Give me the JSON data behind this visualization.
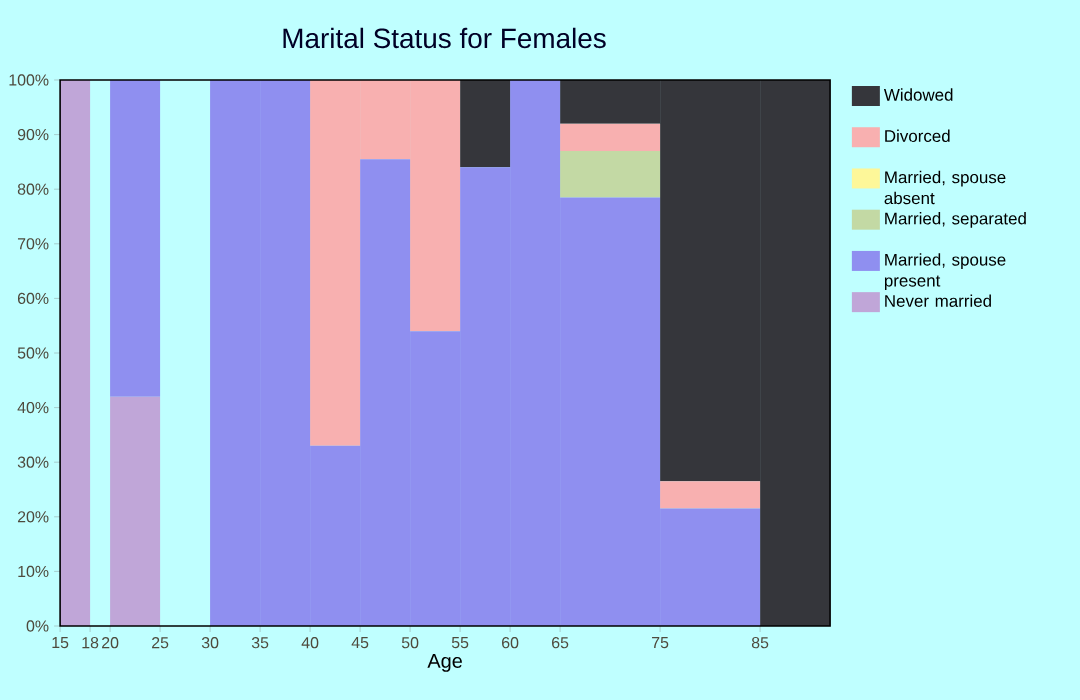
{
  "chart_data": {
    "type": "bar",
    "title": "Marital Status for Females",
    "xlabel": "Age",
    "stacked": true,
    "legend": "right",
    "x": [
      16.5,
      19,
      22.5,
      27.5,
      32.5,
      37.5,
      42.5,
      47.5,
      52.5,
      57.5,
      62.5,
      70,
      80,
      88.5
    ],
    "xlim": [
      15,
      92
    ],
    "xticks": [
      15,
      18,
      20,
      25,
      30,
      35,
      40,
      45,
      50,
      55,
      60,
      65,
      75,
      85
    ],
    "ylim": [
      0,
      100
    ],
    "yticks": [
      {
        "value": 0,
        "label": "0%"
      },
      {
        "value": 10,
        "label": "10%"
      },
      {
        "value": 20,
        "label": "20%"
      },
      {
        "value": 30,
        "label": "30%"
      },
      {
        "value": 40,
        "label": "40%"
      },
      {
        "value": 50,
        "label": "50%"
      },
      {
        "value": 60,
        "label": "60%"
      },
      {
        "value": 70,
        "label": "70%"
      },
      {
        "value": 80,
        "label": "80%"
      },
      {
        "value": 90,
        "label": "90%"
      },
      {
        "value": 100,
        "label": "100%"
      }
    ],
    "series": [
      {
        "name": "Never married",
        "color": "#c0a6d8",
        "values": [
          100,
          0,
          42,
          0,
          0,
          0,
          0,
          0,
          0,
          0,
          0,
          0,
          0,
          0
        ]
      },
      {
        "name": "Married, spouse present",
        "color": "#8f8ff0",
        "values": [
          0,
          0,
          58,
          0,
          100,
          100,
          33,
          85.5,
          54,
          84,
          100,
          78.5,
          21.5,
          0
        ]
      },
      {
        "name": "Married, separated",
        "color": "#c3d9a4",
        "values": [
          0,
          0,
          0,
          0,
          0,
          0,
          0,
          0,
          0,
          0,
          0,
          8.5,
          0,
          0
        ]
      },
      {
        "name": "Married, spouse absent",
        "color": "#fdf799",
        "values": [
          0,
          0,
          0,
          0,
          0,
          0,
          0,
          0,
          0,
          0,
          0,
          0,
          0,
          0
        ]
      },
      {
        "name": "Divorced",
        "color": "#f8b0b0",
        "values": [
          0,
          0,
          0,
          0,
          0,
          0,
          67,
          14.5,
          46,
          0,
          0,
          5,
          5,
          0
        ]
      },
      {
        "name": "Widowed",
        "color": "#35363b",
        "values": [
          0,
          0,
          0,
          0,
          0,
          0,
          0,
          0,
          0,
          16,
          0,
          8,
          73.5,
          100
        ]
      }
    ]
  }
}
